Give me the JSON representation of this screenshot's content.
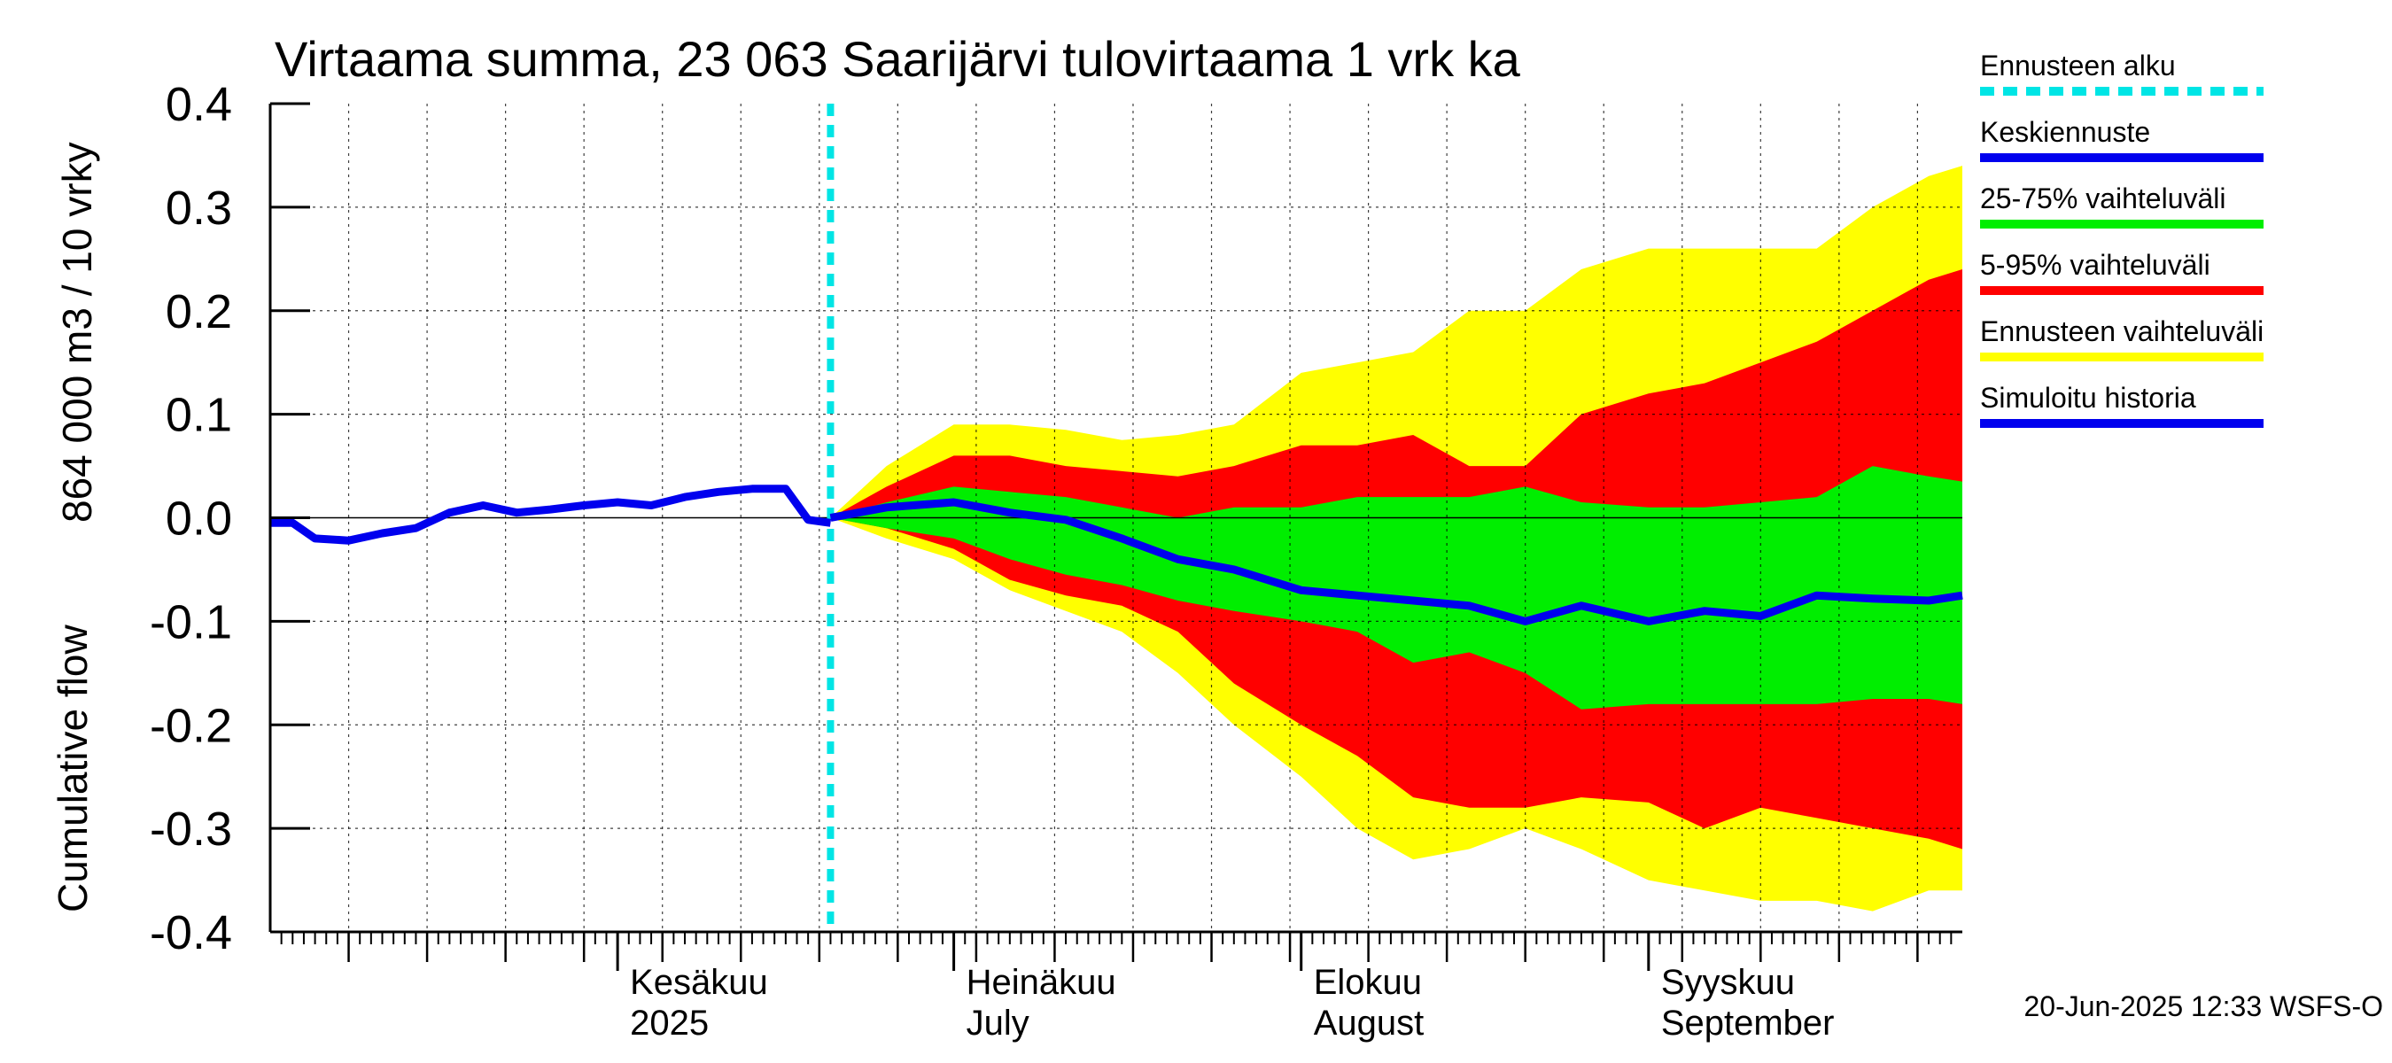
{
  "chart_data": {
    "type": "area",
    "title": "Virtaama summa, 23 063 Saarijärvi tulovirtaama 1 vrk ka",
    "ylabel_fi": "864 000 m3 / 10 vrky",
    "ylabel_en": "Cumulative flow",
    "ylim": [
      -0.4,
      0.4
    ],
    "yticks": [
      0.4,
      0.3,
      0.2,
      0.1,
      0.0,
      -0.1,
      -0.2,
      -0.3,
      -0.4
    ],
    "ytick_labels": [
      "0.4",
      "0.3",
      "0.2",
      "0.1",
      "0.0",
      "-0.1",
      "-0.2",
      "-0.3",
      "-0.4"
    ],
    "x_range": [
      "2025-05-01",
      "2025-09-29"
    ],
    "month_labels": [
      {
        "date": "2025-06-01",
        "line1": "Kesäkuu",
        "line2": "2025"
      },
      {
        "date": "2025-07-01",
        "line1": "Heinäkuu",
        "line2": "July"
      },
      {
        "date": "2025-08-01",
        "line1": "Elokuu",
        "line2": "August"
      },
      {
        "date": "2025-09-01",
        "line1": "Syyskuu",
        "line2": "September"
      }
    ],
    "forecast_start": "2025-06-20",
    "grid": true,
    "legend_position": "right",
    "legend": [
      {
        "label": "Ennusteen alku",
        "color": "#00e5e5",
        "style": "dashed"
      },
      {
        "label": "Keskiennuste",
        "color": "#0000ee",
        "style": "solid"
      },
      {
        "label": "25-75% vaihteluväli",
        "color": "#00ee00",
        "style": "solid"
      },
      {
        "label": "5-95% vaihteluväli",
        "color": "#ff0000",
        "style": "solid"
      },
      {
        "label": "Ennusteen vaihteluväli",
        "color": "#ffff00",
        "style": "solid"
      },
      {
        "label": "Simuloitu historia",
        "color": "#0000ee",
        "style": "solid"
      }
    ],
    "colors": {
      "full_range": "#ffff00",
      "p5_95": "#ff0000",
      "p25_75": "#00ee00",
      "median": "#0000ee",
      "history": "#0000ee",
      "forecast_start": "#00e5e5"
    },
    "history": {
      "x": [
        "2025-05-01",
        "2025-05-03",
        "2025-05-05",
        "2025-05-08",
        "2025-05-11",
        "2025-05-14",
        "2025-05-17",
        "2025-05-20",
        "2025-05-23",
        "2025-05-26",
        "2025-05-29",
        "2025-06-01",
        "2025-06-04",
        "2025-06-07",
        "2025-06-10",
        "2025-06-13",
        "2025-06-16",
        "2025-06-18",
        "2025-06-20"
      ],
      "y": [
        -0.005,
        -0.005,
        -0.02,
        -0.022,
        -0.015,
        -0.01,
        0.005,
        0.012,
        0.005,
        0.008,
        0.012,
        0.015,
        0.012,
        0.02,
        0.025,
        0.028,
        0.028,
        -0.002,
        -0.005
      ]
    },
    "forecast": {
      "x": [
        "2025-06-20",
        "2025-06-25",
        "2025-07-01",
        "2025-07-06",
        "2025-07-11",
        "2025-07-16",
        "2025-07-21",
        "2025-07-26",
        "2025-08-01",
        "2025-08-06",
        "2025-08-11",
        "2025-08-16",
        "2025-08-21",
        "2025-08-26",
        "2025-09-01",
        "2025-09-06",
        "2025-09-11",
        "2025-09-16",
        "2025-09-21",
        "2025-09-26",
        "2025-09-29"
      ],
      "max": [
        0,
        0.05,
        0.09,
        0.09,
        0.085,
        0.075,
        0.08,
        0.09,
        0.14,
        0.15,
        0.16,
        0.2,
        0.2,
        0.24,
        0.26,
        0.26,
        0.26,
        0.26,
        0.3,
        0.33,
        0.34
      ],
      "p95": [
        0,
        0.03,
        0.06,
        0.06,
        0.05,
        0.045,
        0.04,
        0.05,
        0.07,
        0.07,
        0.08,
        0.05,
        0.05,
        0.1,
        0.12,
        0.13,
        0.15,
        0.17,
        0.2,
        0.23,
        0.24
      ],
      "p75": [
        0,
        0.015,
        0.03,
        0.025,
        0.02,
        0.01,
        0,
        0.01,
        0.01,
        0.02,
        0.02,
        0.02,
        0.03,
        0.015,
        0.01,
        0.01,
        0.015,
        0.02,
        0.05,
        0.04,
        0.035
      ],
      "median": [
        0,
        0.01,
        0.015,
        0.005,
        -0.002,
        -0.02,
        -0.04,
        -0.05,
        -0.07,
        -0.075,
        -0.08,
        -0.085,
        -0.1,
        -0.085,
        -0.1,
        -0.09,
        -0.095,
        -0.075,
        -0.078,
        -0.08,
        -0.075
      ],
      "p25": [
        0,
        -0.01,
        -0.02,
        -0.04,
        -0.055,
        -0.065,
        -0.08,
        -0.09,
        -0.1,
        -0.11,
        -0.14,
        -0.13,
        -0.15,
        -0.185,
        -0.18,
        -0.18,
        -0.18,
        -0.18,
        -0.175,
        -0.175,
        -0.18
      ],
      "p5": [
        0,
        -0.01,
        -0.03,
        -0.06,
        -0.075,
        -0.085,
        -0.11,
        -0.16,
        -0.2,
        -0.23,
        -0.27,
        -0.28,
        -0.28,
        -0.27,
        -0.275,
        -0.3,
        -0.28,
        -0.29,
        -0.3,
        -0.31,
        -0.32
      ],
      "min": [
        0,
        -0.02,
        -0.04,
        -0.07,
        -0.09,
        -0.11,
        -0.15,
        -0.2,
        -0.25,
        -0.3,
        -0.33,
        -0.32,
        -0.3,
        -0.32,
        -0.35,
        -0.36,
        -0.37,
        -0.37,
        -0.38,
        -0.36,
        -0.36
      ]
    },
    "timestamp": "20-Jun-2025 12:33 WSFS-O"
  }
}
